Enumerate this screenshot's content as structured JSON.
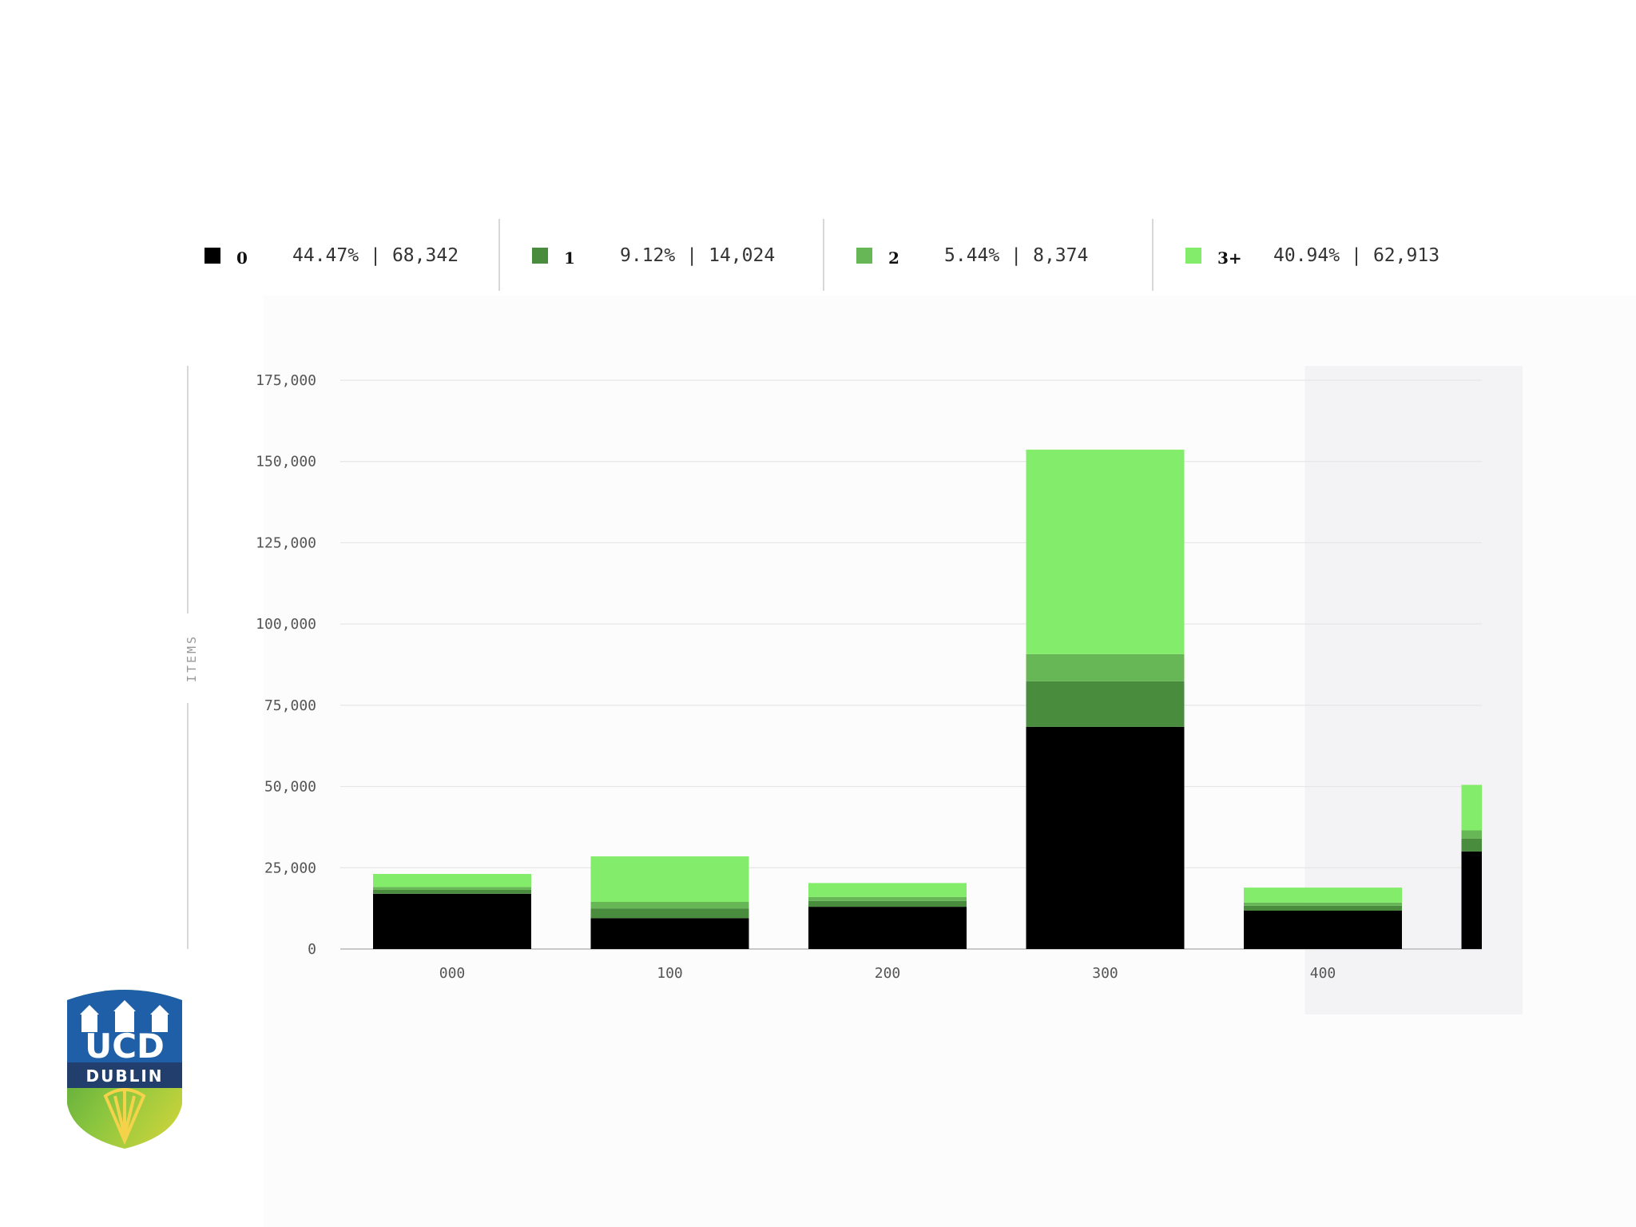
{
  "legend": [
    {
      "name": "0",
      "percent": "44.47%",
      "count": "68,342",
      "color": "#000000"
    },
    {
      "name": "1",
      "percent": "9.12%",
      "count": "14,024",
      "color": "#4a8c3e"
    },
    {
      "name": "2",
      "percent": "5.44%",
      "count": "8,374",
      "color": "#67b756"
    },
    {
      "name": "3+",
      "percent": "40.94%",
      "count": "62,913",
      "color": "#84ec6b"
    }
  ],
  "logo": {
    "line1": "UCD",
    "line2": "DUBLIN"
  },
  "chart_data": {
    "type": "bar",
    "stacked": true,
    "ylabel": "ITEMS",
    "xlabel": "",
    "categories": [
      "000",
      "100",
      "200",
      "300",
      "400",
      ""
    ],
    "series": [
      {
        "name": "0",
        "values": [
          17000,
          9500,
          13000,
          68342,
          11800,
          30000
        ]
      },
      {
        "name": "1",
        "values": [
          1200,
          3000,
          1800,
          14024,
          1500,
          4000
        ]
      },
      {
        "name": "2",
        "values": [
          900,
          2000,
          1200,
          8374,
          1000,
          2500
        ]
      },
      {
        "name": "3+",
        "values": [
          4000,
          14000,
          4300,
          62913,
          4600,
          14000
        ]
      }
    ],
    "ylim": [
      0,
      175000
    ],
    "yticks": [
      "0",
      "25,000",
      "50,000",
      "75,000",
      "100,000",
      "125,000",
      "150,000",
      "175,000"
    ],
    "highlighted_category": "300",
    "grid": true,
    "legend_position": "top"
  }
}
